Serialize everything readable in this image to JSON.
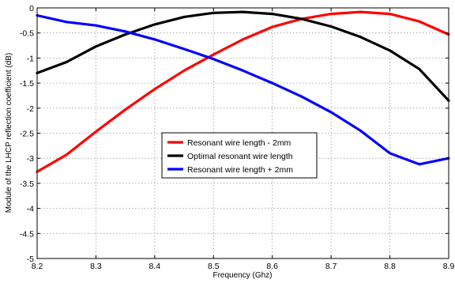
{
  "chart_data": {
    "type": "line",
    "title": "",
    "xlabel": "Frequency (Ghz)",
    "ylabel": "Module of the LHCP reflection coefficient (dB)",
    "xlim": [
      8.2,
      8.9
    ],
    "ylim": [
      -5,
      0
    ],
    "x_ticks": [
      "8.2",
      "8.3",
      "8.4",
      "8.5",
      "8.6",
      "8.7",
      "8.8",
      "8.9"
    ],
    "y_ticks": [
      "0",
      "-0.5",
      "-1",
      "-1.5",
      "-2",
      "-2.5",
      "-3",
      "-3.5",
      "-4",
      "-4.5",
      "-5"
    ],
    "grid": true,
    "legend_position": "center",
    "x": [
      8.2,
      8.25,
      8.3,
      8.35,
      8.4,
      8.45,
      8.5,
      8.55,
      8.6,
      8.65,
      8.7,
      8.75,
      8.8,
      8.85,
      8.9
    ],
    "series": [
      {
        "name": "Resonant wire length - 2mm",
        "color": "#ff0000",
        "values": [
          -3.27,
          -2.93,
          -2.47,
          -2.03,
          -1.62,
          -1.25,
          -0.93,
          -0.63,
          -0.38,
          -0.22,
          -0.12,
          -0.08,
          -0.12,
          -0.27,
          -0.53
        ]
      },
      {
        "name": "Optimal resonant wire length",
        "color": "#000000",
        "values": [
          -1.3,
          -1.08,
          -0.77,
          -0.53,
          -0.33,
          -0.18,
          -0.1,
          -0.08,
          -0.12,
          -0.22,
          -0.37,
          -0.58,
          -0.85,
          -1.22,
          -1.85
        ]
      },
      {
        "name": "Resonant wire length + 2mm",
        "color": "#0000ff",
        "values": [
          -0.15,
          -0.28,
          -0.35,
          -0.47,
          -0.63,
          -0.82,
          -1.02,
          -1.25,
          -1.5,
          -1.77,
          -2.08,
          -2.45,
          -2.9,
          -3.12,
          -3.0
        ]
      }
    ]
  }
}
